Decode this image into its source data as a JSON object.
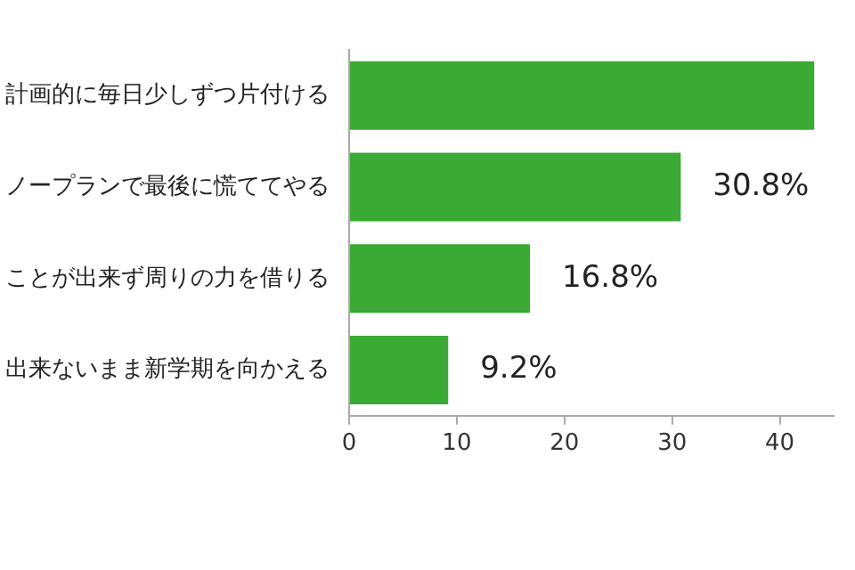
{
  "chart_data": {
    "type": "bar",
    "orientation": "horizontal",
    "categories": [
      "計画的に毎日少しずつ片付ける",
      "ノープランで最後に慌ててやる",
      "ことが出来ず周りの力を借りる",
      "出来ないまま新学期を向かえる"
    ],
    "values": [
      43.2,
      30.8,
      16.8,
      9.2
    ],
    "value_labels": [
      null,
      "30.8%",
      "16.8%",
      "9.2%"
    ],
    "color": "#3aaa35",
    "xlim": [
      0,
      45
    ],
    "xticks": [
      0,
      10,
      20,
      30,
      40
    ]
  }
}
